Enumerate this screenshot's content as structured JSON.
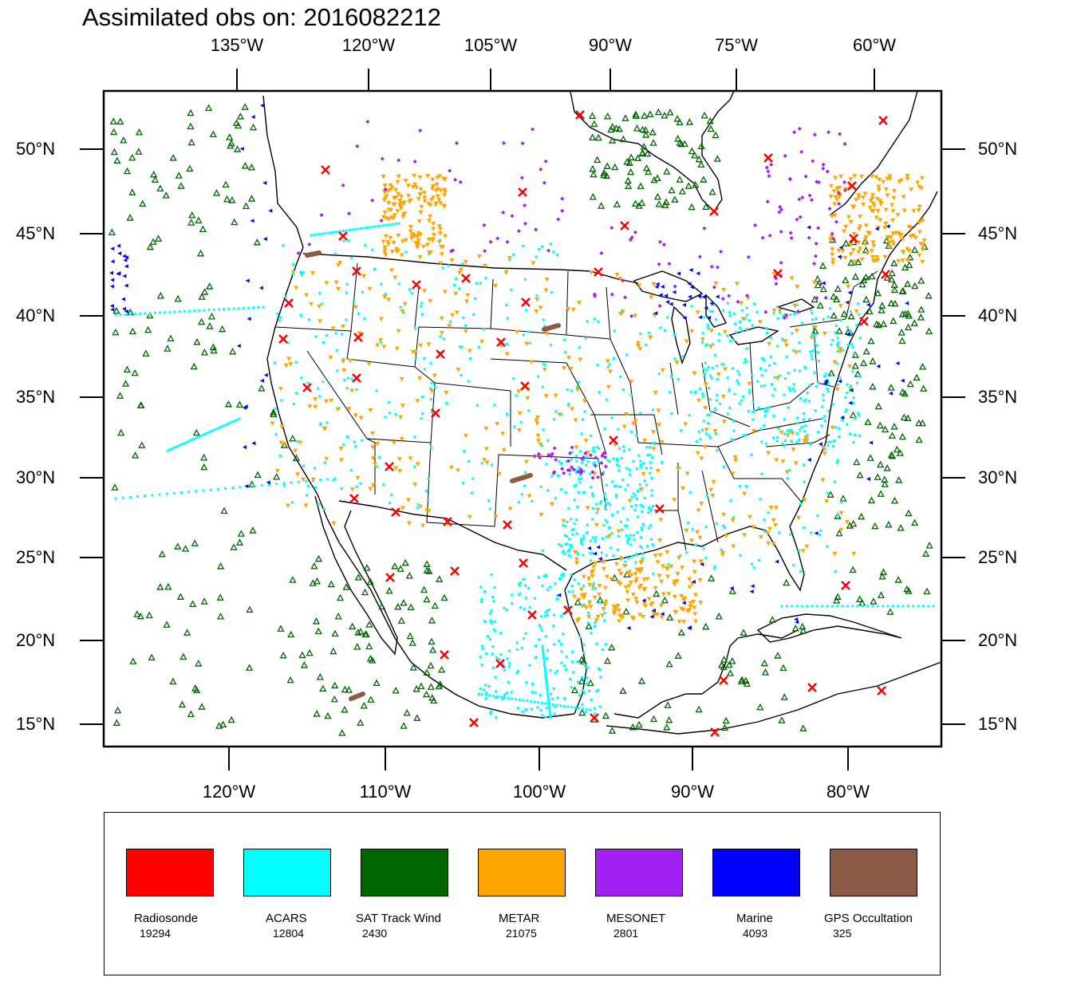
{
  "title": "Assimilated obs on: 2016082212",
  "axes": {
    "top_lon_labels": [
      "135°W",
      "120°W",
      "105°W",
      "90°W",
      "75°W",
      "60°W"
    ],
    "bottom_lon_labels": [
      "120°W",
      "110°W",
      "100°W",
      "90°W",
      "80°W"
    ],
    "left_lat_labels": [
      "50°N",
      "45°N",
      "40°N",
      "35°N",
      "30°N",
      "25°N",
      "20°N",
      "15°N"
    ],
    "right_lat_labels": [
      "50°N",
      "45°N",
      "40°N",
      "35°N",
      "30°N",
      "25°N",
      "20°N",
      "15°N"
    ]
  },
  "legend": [
    {
      "name": "Radiosonde",
      "count": "19294",
      "color": "#ff0000"
    },
    {
      "name": "ACARS",
      "count": "12804",
      "color": "#00ffff"
    },
    {
      "name": "SAT Track Wind",
      "count": "2430",
      "color": "#006400"
    },
    {
      "name": "METAR",
      "count": "21075",
      "color": "#ffa500"
    },
    {
      "name": "MESONET",
      "count": "2801",
      "color": "#a020f0"
    },
    {
      "name": "Marine",
      "count": "4093",
      "color": "#0000ff"
    },
    {
      "name": "GPS Occultation",
      "count": "325",
      "color": "#8b5a44"
    }
  ],
  "colors": {
    "radiosonde": "#ff0000",
    "acars": "#00ffff",
    "sat_track_wind": "#006400",
    "metar": "#ffa500",
    "mesonet": "#a020f0",
    "marine": "#0000ff",
    "gps": "#8b5a44"
  }
}
